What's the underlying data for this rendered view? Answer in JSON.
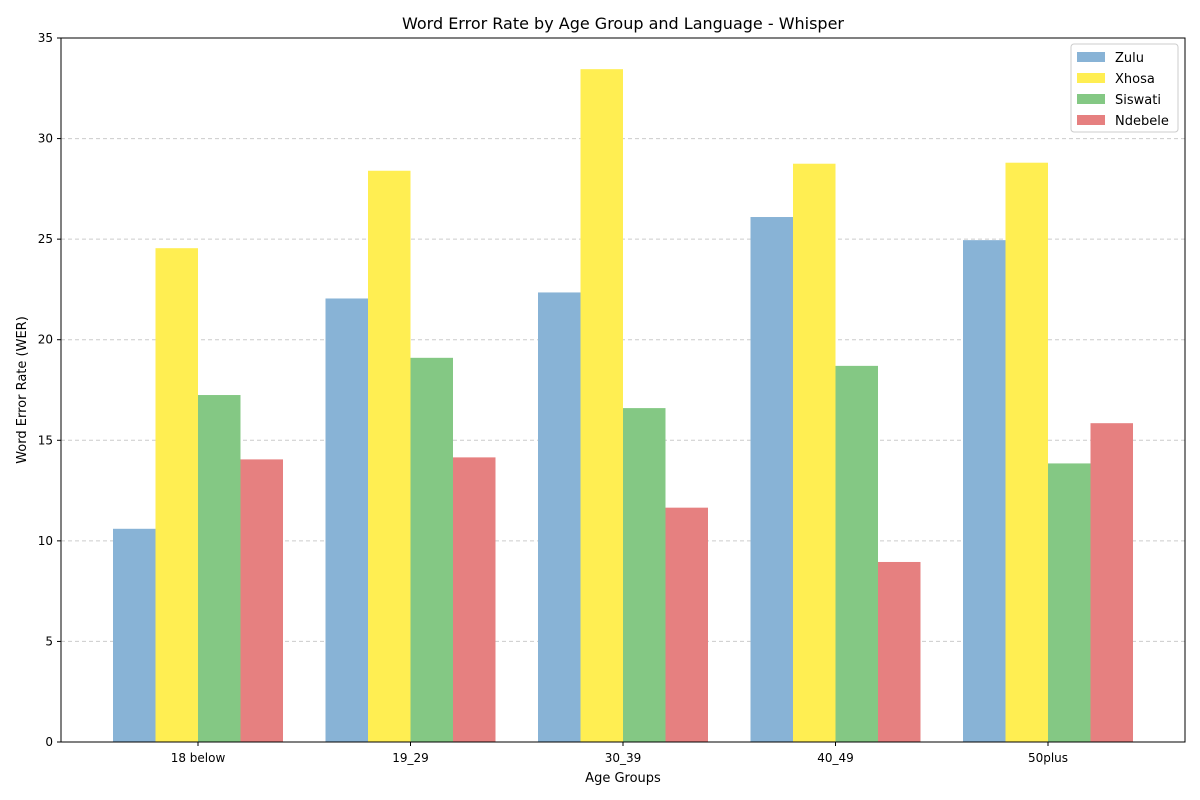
{
  "chart_data": {
    "type": "bar",
    "title": "Word Error Rate by Age Group and Language - Whisper",
    "xlabel": "Age Groups",
    "ylabel": "Word Error Rate (WER)",
    "ylim": [
      0,
      35
    ],
    "yticks": [
      0,
      5,
      10,
      15,
      20,
      25,
      30,
      35
    ],
    "grid": "y-dashed",
    "legend_position": "top-right",
    "categories": [
      "18 below",
      "19_29",
      "30_39",
      "40_49",
      "50plus"
    ],
    "series": [
      {
        "name": "Zulu",
        "color": "#88b3d6",
        "values": [
          10.6,
          22.05,
          22.35,
          26.1,
          24.95
        ]
      },
      {
        "name": "Xhosa",
        "color": "#ffee52",
        "values": [
          24.55,
          28.4,
          33.45,
          28.75,
          28.8
        ]
      },
      {
        "name": "Siswati",
        "color": "#84c884",
        "values": [
          17.25,
          19.1,
          16.6,
          18.7,
          13.85
        ]
      },
      {
        "name": "Ndebele",
        "color": "#e68080",
        "values": [
          14.05,
          14.15,
          11.65,
          8.95,
          15.85
        ]
      }
    ]
  }
}
